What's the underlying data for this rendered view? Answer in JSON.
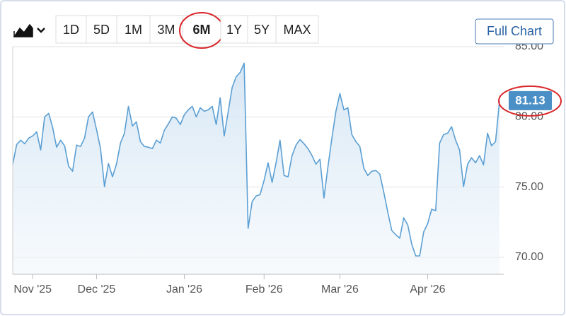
{
  "chart_data": {
    "type": "line",
    "values": [
      76.63,
      78.04,
      78.34,
      78.09,
      78.49,
      78.64,
      78.94,
      77.64,
      80.0,
      80.25,
      79.25,
      77.84,
      78.34,
      77.94,
      76.48,
      76.13,
      77.99,
      77.89,
      78.49,
      80.0,
      80.35,
      79.1,
      77.74,
      75.03,
      76.68,
      75.73,
      76.63,
      78.14,
      78.84,
      80.75,
      79.35,
      79.65,
      78.24,
      77.89,
      77.84,
      77.74,
      78.34,
      78.14,
      79.05,
      79.5,
      80.0,
      79.9,
      79.45,
      80.15,
      80.5,
      80.75,
      80.0,
      80.65,
      80.4,
      80.5,
      80.75,
      79.45,
      81.36,
      78.64,
      80.35,
      82.11,
      82.86,
      83.17,
      83.82,
      72.06,
      73.97,
      74.37,
      74.47,
      75.48,
      76.73,
      75.33,
      76.73,
      78.34,
      75.83,
      75.73,
      77.24,
      77.99,
      78.39,
      78.09,
      77.74,
      77.24,
      76.63,
      76.98,
      74.22,
      76.43,
      78.49,
      80.4,
      81.66,
      80.5,
      80.65,
      78.74,
      78.24,
      77.89,
      76.33,
      75.83,
      76.13,
      76.18,
      75.93,
      74.62,
      73.22,
      71.91,
      71.61,
      71.36,
      72.81,
      72.31,
      70.95,
      70.1,
      70.1,
      71.81,
      72.41,
      73.42,
      73.32,
      78.14,
      78.74,
      78.84,
      79.3,
      78.34,
      77.64,
      75.03,
      76.63,
      77.09,
      76.73,
      77.24,
      76.58,
      78.84,
      77.94,
      78.24,
      81.13
    ],
    "value_labels": {
      "122": "81.13"
    },
    "color": "#5b9fd3",
    "xlim": [
      0,
      122
    ],
    "xticks": [
      {
        "value": 5,
        "label": "Nov '25"
      },
      {
        "value": 21,
        "label": "Dec '25"
      },
      {
        "value": 43,
        "label": "Jan '26"
      },
      {
        "value": 63,
        "label": "Feb '26"
      },
      {
        "value": 82,
        "label": "Mar '26"
      },
      {
        "value": 104,
        "label": "Apr '26"
      }
    ],
    "ylim": [
      68.79,
      85
    ],
    "yticks": [
      {
        "value": 70,
        "label": "70.00"
      },
      {
        "value": 75,
        "label": "75.00"
      },
      {
        "value": 80,
        "label": "80.00"
      },
      {
        "value": 85,
        "label": "85.00"
      }
    ],
    "grid": true
  },
  "toolbar": {
    "ranges": [
      "1D",
      "5D",
      "1M",
      "3M",
      "6M",
      "1Y",
      "5Y",
      "MAX"
    ],
    "active_index": 4,
    "full_chart": "Full Chart"
  }
}
